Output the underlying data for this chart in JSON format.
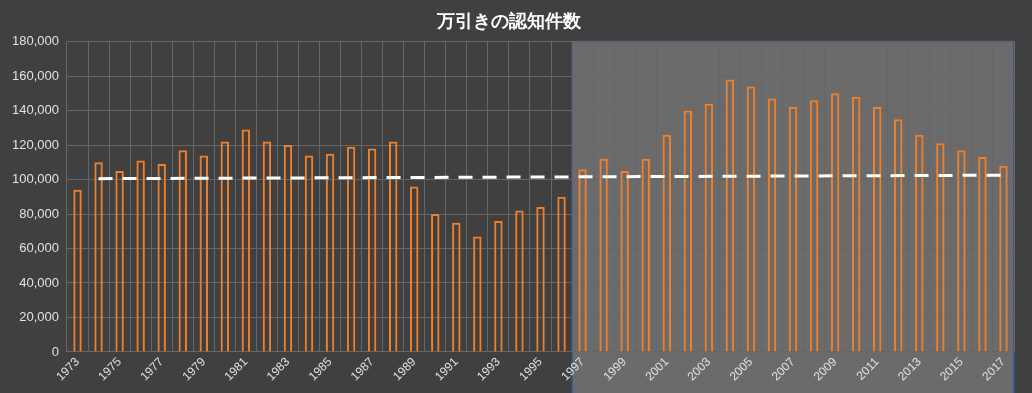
{
  "chart_data": {
    "type": "bar",
    "title": "万引きの認知件数",
    "categories": [
      "1973",
      null,
      "1975",
      null,
      "1977",
      null,
      "1979",
      null,
      "1981",
      null,
      "1983",
      null,
      "1985",
      null,
      "1987",
      null,
      "1989",
      null,
      "1991",
      null,
      "1993",
      null,
      "1995",
      null,
      "1997",
      null,
      "1999",
      null,
      "2001",
      null,
      "2003",
      null,
      "2005",
      null,
      "2007",
      null,
      "2009",
      null,
      "2011",
      null,
      "2013",
      null,
      "2015",
      null,
      "2017"
    ],
    "series": [
      {
        "color": "#f07f2a",
        "values": [
          94000,
          110000,
          105000,
          111000,
          109000,
          117000,
          114000,
          122000,
          129000,
          122000,
          120000,
          114000,
          115000,
          119000,
          118000,
          122000,
          96000,
          80000,
          75000,
          67000,
          76000,
          82000,
          84000,
          90000,
          106000,
          112000,
          105000,
          112000,
          126000,
          140000,
          144000,
          158000,
          154000,
          147000,
          142000,
          146000,
          150000,
          148000,
          142000,
          135000,
          126000,
          121000,
          117000,
          113000,
          108000
        ]
      },
      {
        "type": "line",
        "color": "#ffffff",
        "line_style": "dashed",
        "marker": "none",
        "values": [
          null,
          100500,
          null,
          null,
          null,
          null,
          null,
          null,
          null,
          null,
          null,
          null,
          null,
          null,
          null,
          null,
          null,
          null,
          null,
          null,
          null,
          null,
          null,
          null,
          null,
          null,
          null,
          null,
          null,
          null,
          null,
          null,
          null,
          null,
          null,
          null,
          null,
          null,
          null,
          null,
          null,
          null,
          null,
          null,
          102500
        ]
      }
    ],
    "ylim": [
      0,
      180000
    ],
    "yticks": [
      0,
      {
        "value": 20000,
        "label": "20,000"
      },
      {
        "value": 40000,
        "label": "40,000"
      },
      {
        "value": 60000,
        "label": "60,000"
      },
      {
        "value": 80000,
        "label": "80,000"
      },
      {
        "value": 100000,
        "label": "100,000"
      },
      {
        "value": 120000,
        "label": "120,000"
      },
      {
        "value": 140000,
        "label": "140,000"
      },
      {
        "value": 160000,
        "label": "160,000"
      },
      {
        "value": 180000,
        "label": "180,000"
      }
    ],
    "bands": [
      {
        "axis": "x",
        "from": "1997",
        "to": "2017",
        "color": "#7a7a7a"
      }
    ],
    "grid": true,
    "legend": false
  }
}
